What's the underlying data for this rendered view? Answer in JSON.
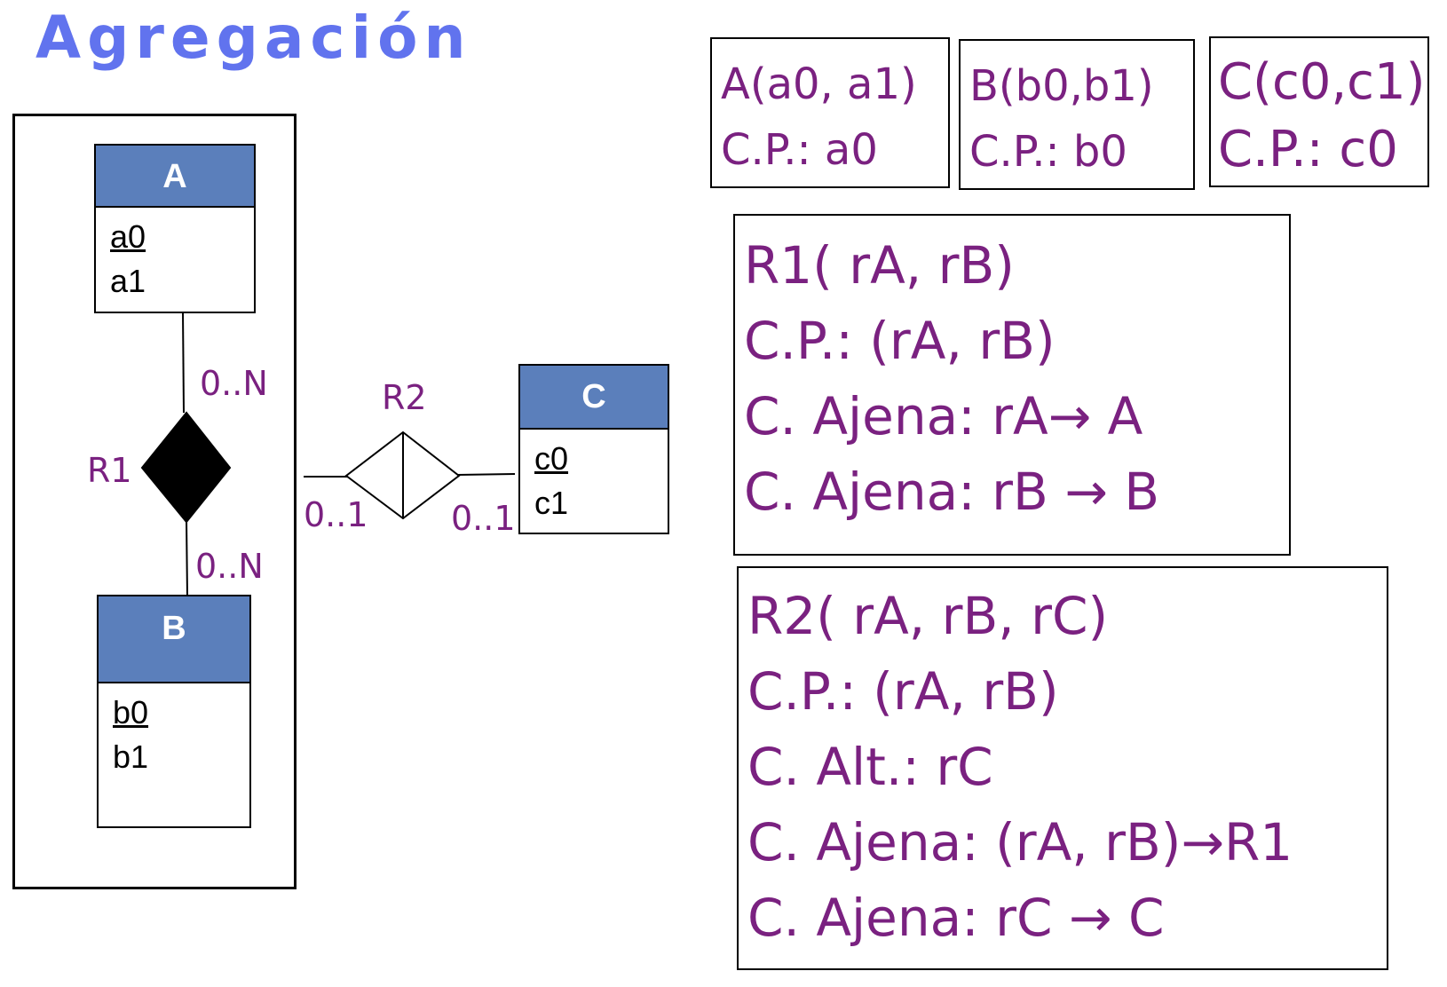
{
  "title": "Agregación",
  "entities": {
    "A": {
      "name": "A",
      "pk": "a0",
      "attr": "a1"
    },
    "B": {
      "name": "B",
      "pk": "b0",
      "attr": "b1"
    },
    "C": {
      "name": "C",
      "pk": "c0",
      "attr": "c1"
    }
  },
  "relations": {
    "R1": {
      "name": "R1",
      "card_top": "0..N",
      "card_bottom": "0..N"
    },
    "R2": {
      "name": "R2",
      "card_left": "0..1",
      "card_right": "0..1"
    }
  },
  "schema": {
    "A": {
      "line1": "A(a0, a1)",
      "line2": "C.P.: a0"
    },
    "B": {
      "line1": "B(b0,b1)",
      "line2": "C.P.: b0"
    },
    "C": {
      "line1": "C(c0,c1)",
      "line2": "C.P.: c0"
    },
    "R1": [
      "R1( rA, rB)",
      "C.P.: (rA, rB)",
      "C. Ajena: rA→ A",
      "C. Ajena: rB → B"
    ],
    "R2": [
      "R2( rA, rB, rC)",
      "C.P.: (rA, rB)",
      "C. Alt.: rC",
      "C. Ajena: (rA, rB)→R1",
      "C. Ajena: rC → C"
    ]
  },
  "colors": {
    "title": "#6173ee",
    "entity_header": "#5b7fbb",
    "text_purple": "#7a2180"
  }
}
